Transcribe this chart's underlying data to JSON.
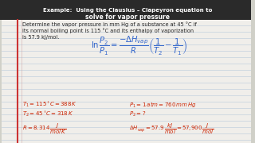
{
  "bg_color": "#d0d0c8",
  "paper_color": "#f0eeea",
  "header_bg": "#2a2a2a",
  "header_line1": "Example:  Using the Clausius – Clapeyron equation to",
  "header_line2": "solve for vapor pressure",
  "body_line1": "Determine the vapor pressure in mm Hg of a substance at 45 °C if",
  "body_line2": "its normal boiling point is 115 °C and its enthalpy of vaporization",
  "body_line3": "is 57.9 kJ/mol.",
  "header_color": "#ffffff",
  "body_color": "#222222",
  "eq_color": "#3366cc",
  "var_color": "#cc2200",
  "margin_line_color": "#cc3333",
  "notebook_line_color": "#b0c4d8",
  "margin_line2_color": "#cc9999",
  "figw": 3.2,
  "figh": 1.8,
  "dpi": 100
}
